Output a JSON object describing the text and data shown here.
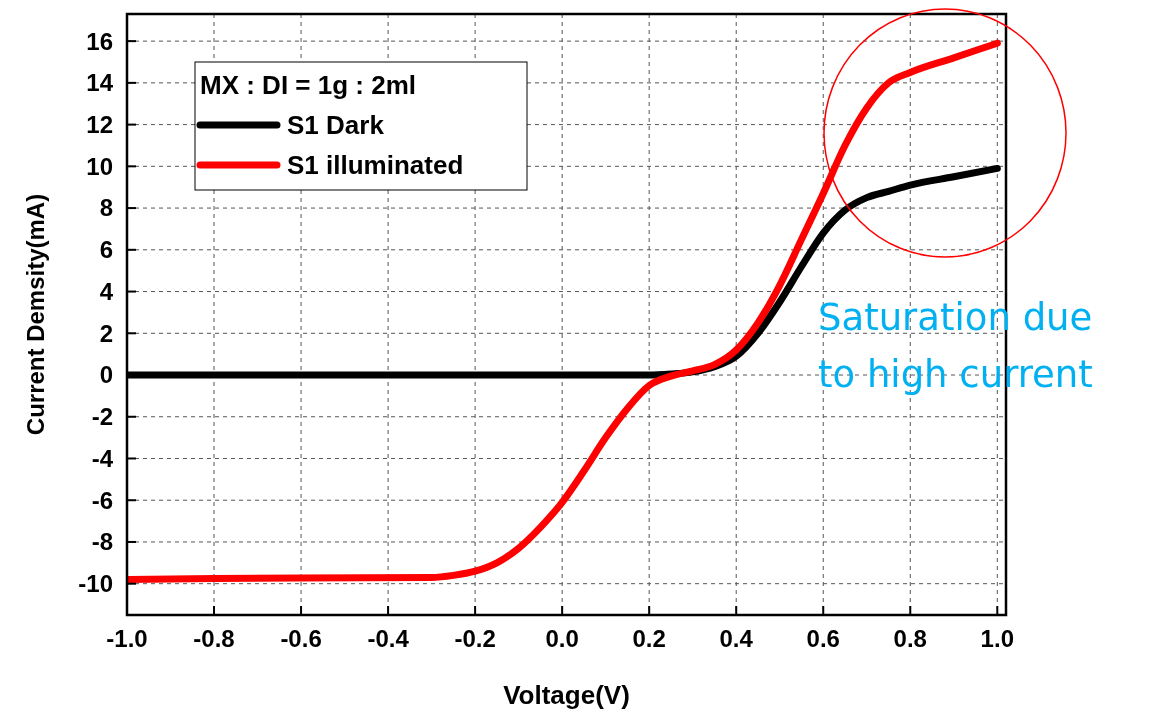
{
  "chart_data": {
    "type": "line",
    "xlabel": "Voltage(V)",
    "ylabel": "Current Demsity(mA)",
    "legend_title": "MX : DI = 1g : 2ml",
    "annotations": [
      "Saturation due\nto high current"
    ],
    "xlim": [
      -1.0,
      1.02
    ],
    "ylim": [
      -11.5,
      17.3
    ],
    "xticks": [
      {
        "value": -1.0,
        "label": "-1.0"
      },
      -0.8,
      -0.6,
      -0.4,
      -0.2,
      {
        "value": 0,
        "label": "0.0"
      },
      0.2,
      0.4,
      0.6,
      0.8,
      {
        "value": 1.0,
        "label": "1.0"
      }
    ],
    "yticks": [
      -10,
      -8,
      -6,
      -4,
      -2,
      0,
      2,
      4,
      6,
      8,
      10,
      12,
      14,
      16
    ],
    "grid": true,
    "legend": "top left",
    "marker": "none",
    "line_style": "solid",
    "series": [
      {
        "name": "S1 Dark",
        "color": "#000000",
        "x": [
          -1.0,
          -0.5,
          0.0,
          0.2,
          0.25,
          0.3,
          0.35,
          0.4,
          0.45,
          0.5,
          0.55,
          0.6,
          0.65,
          0.7,
          0.75,
          0.8,
          0.9,
          1.0
        ],
        "values": [
          0,
          0,
          0,
          0,
          0.05,
          0.15,
          0.4,
          0.9,
          2.0,
          3.5,
          5.2,
          6.8,
          7.9,
          8.5,
          8.8,
          9.1,
          9.5,
          9.9
        ]
      },
      {
        "name": "S1 illuminated",
        "color": "#ff0000",
        "x": [
          -1.0,
          -0.8,
          -0.3,
          -0.25,
          -0.2,
          -0.15,
          -0.1,
          -0.05,
          0.0,
          0.05,
          0.1,
          0.15,
          0.2,
          0.25,
          0.3,
          0.35,
          0.4,
          0.45,
          0.5,
          0.55,
          0.6,
          0.65,
          0.7,
          0.75,
          0.8,
          0.9,
          1.0
        ],
        "values": [
          -9.8,
          -9.75,
          -9.7,
          -9.6,
          -9.4,
          -9.0,
          -8.3,
          -7.3,
          -6.1,
          -4.6,
          -3.0,
          -1.6,
          -0.5,
          -0.05,
          0.2,
          0.5,
          1.2,
          2.5,
          4.3,
          6.5,
          8.7,
          11.0,
          12.8,
          14.0,
          14.5,
          15.2,
          15.9
        ]
      }
    ]
  }
}
